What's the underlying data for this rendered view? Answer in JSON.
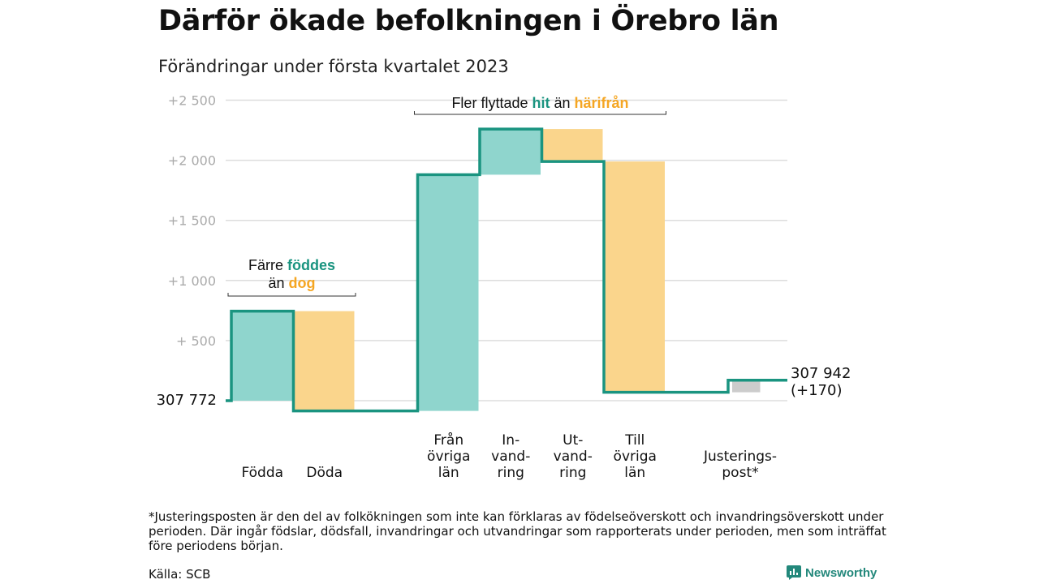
{
  "header": {
    "title": "Därför ökade befolkningen i Örebro län",
    "subtitle": "Förändringar under första kvartalet 2023"
  },
  "colors": {
    "teal_fill": "#8fd5cd",
    "orange_fill": "#fad58c",
    "gray_fill": "#cccccc",
    "line": "#1a9480",
    "teal_text": "#1a9480",
    "orange_text": "#f5a623",
    "grid": "#dddddd",
    "tick_text": "#aaaaaa"
  },
  "chart_data": {
    "type": "waterfall",
    "start_label": "307 772",
    "end_label_lines": [
      "307 942",
      "(+170)"
    ],
    "ylim": [
      -100,
      2600
    ],
    "y_ticks": [
      {
        "value": 2500,
        "label": "+2 500"
      },
      {
        "value": 2000,
        "label": "+2 000"
      },
      {
        "value": 1500,
        "label": "+1 500"
      },
      {
        "value": 1000,
        "label": "+1 000"
      },
      {
        "value": 500,
        "label": "+ 500"
      }
    ],
    "steps": [
      {
        "category": [
          "Födda"
        ],
        "change": 745,
        "fill": "teal"
      },
      {
        "category": [
          "Döda"
        ],
        "change": -830,
        "fill": "orange"
      },
      {
        "category": [],
        "change": 0,
        "fill": "none"
      },
      {
        "category": [
          "Från",
          "övriga",
          "län"
        ],
        "change": 1965,
        "fill": "teal"
      },
      {
        "category": [
          "In-",
          "vand-",
          "ring"
        ],
        "change": 380,
        "fill": "teal"
      },
      {
        "category": [
          "Ut-",
          "vand-",
          "ring"
        ],
        "change": -270,
        "fill": "orange"
      },
      {
        "category": [
          "Till",
          "övriga",
          "län"
        ],
        "change": -1920,
        "fill": "orange"
      },
      {
        "category": [],
        "change": 0,
        "fill": "none"
      },
      {
        "category": [
          "Justerings-",
          "post*"
        ],
        "change": 100,
        "fill": "gray"
      }
    ],
    "annotations": [
      {
        "from_step": 0,
        "to_step": 1,
        "at_value": 870,
        "parts": [
          [
            "Färre ",
            "plain"
          ],
          [
            "föddes",
            "teal"
          ],
          [
            "än ",
            "plain"
          ],
          [
            "dog",
            "orange"
          ]
        ],
        "line_break_after": 1
      },
      {
        "from_step": 3,
        "to_step": 6,
        "at_value": 2470,
        "parts": [
          [
            "Fler flyttade ",
            "plain"
          ],
          [
            "hit",
            "teal"
          ],
          [
            " än ",
            "plain"
          ],
          [
            "härifrån",
            "orange"
          ]
        ],
        "line_break_after": -1
      }
    ]
  },
  "footer": {
    "footnote": "*Justeringsposten är den del av folkökningen som inte kan förklaras av födelseöverskott och invandringsöverskott under perioden. Där ingår födslar, dödsfall, invandringar och utvandringar som rapporterats under perioden, men som inträffat före periodens början.",
    "source": "Källa: SCB",
    "brand": "Newsworthy"
  }
}
